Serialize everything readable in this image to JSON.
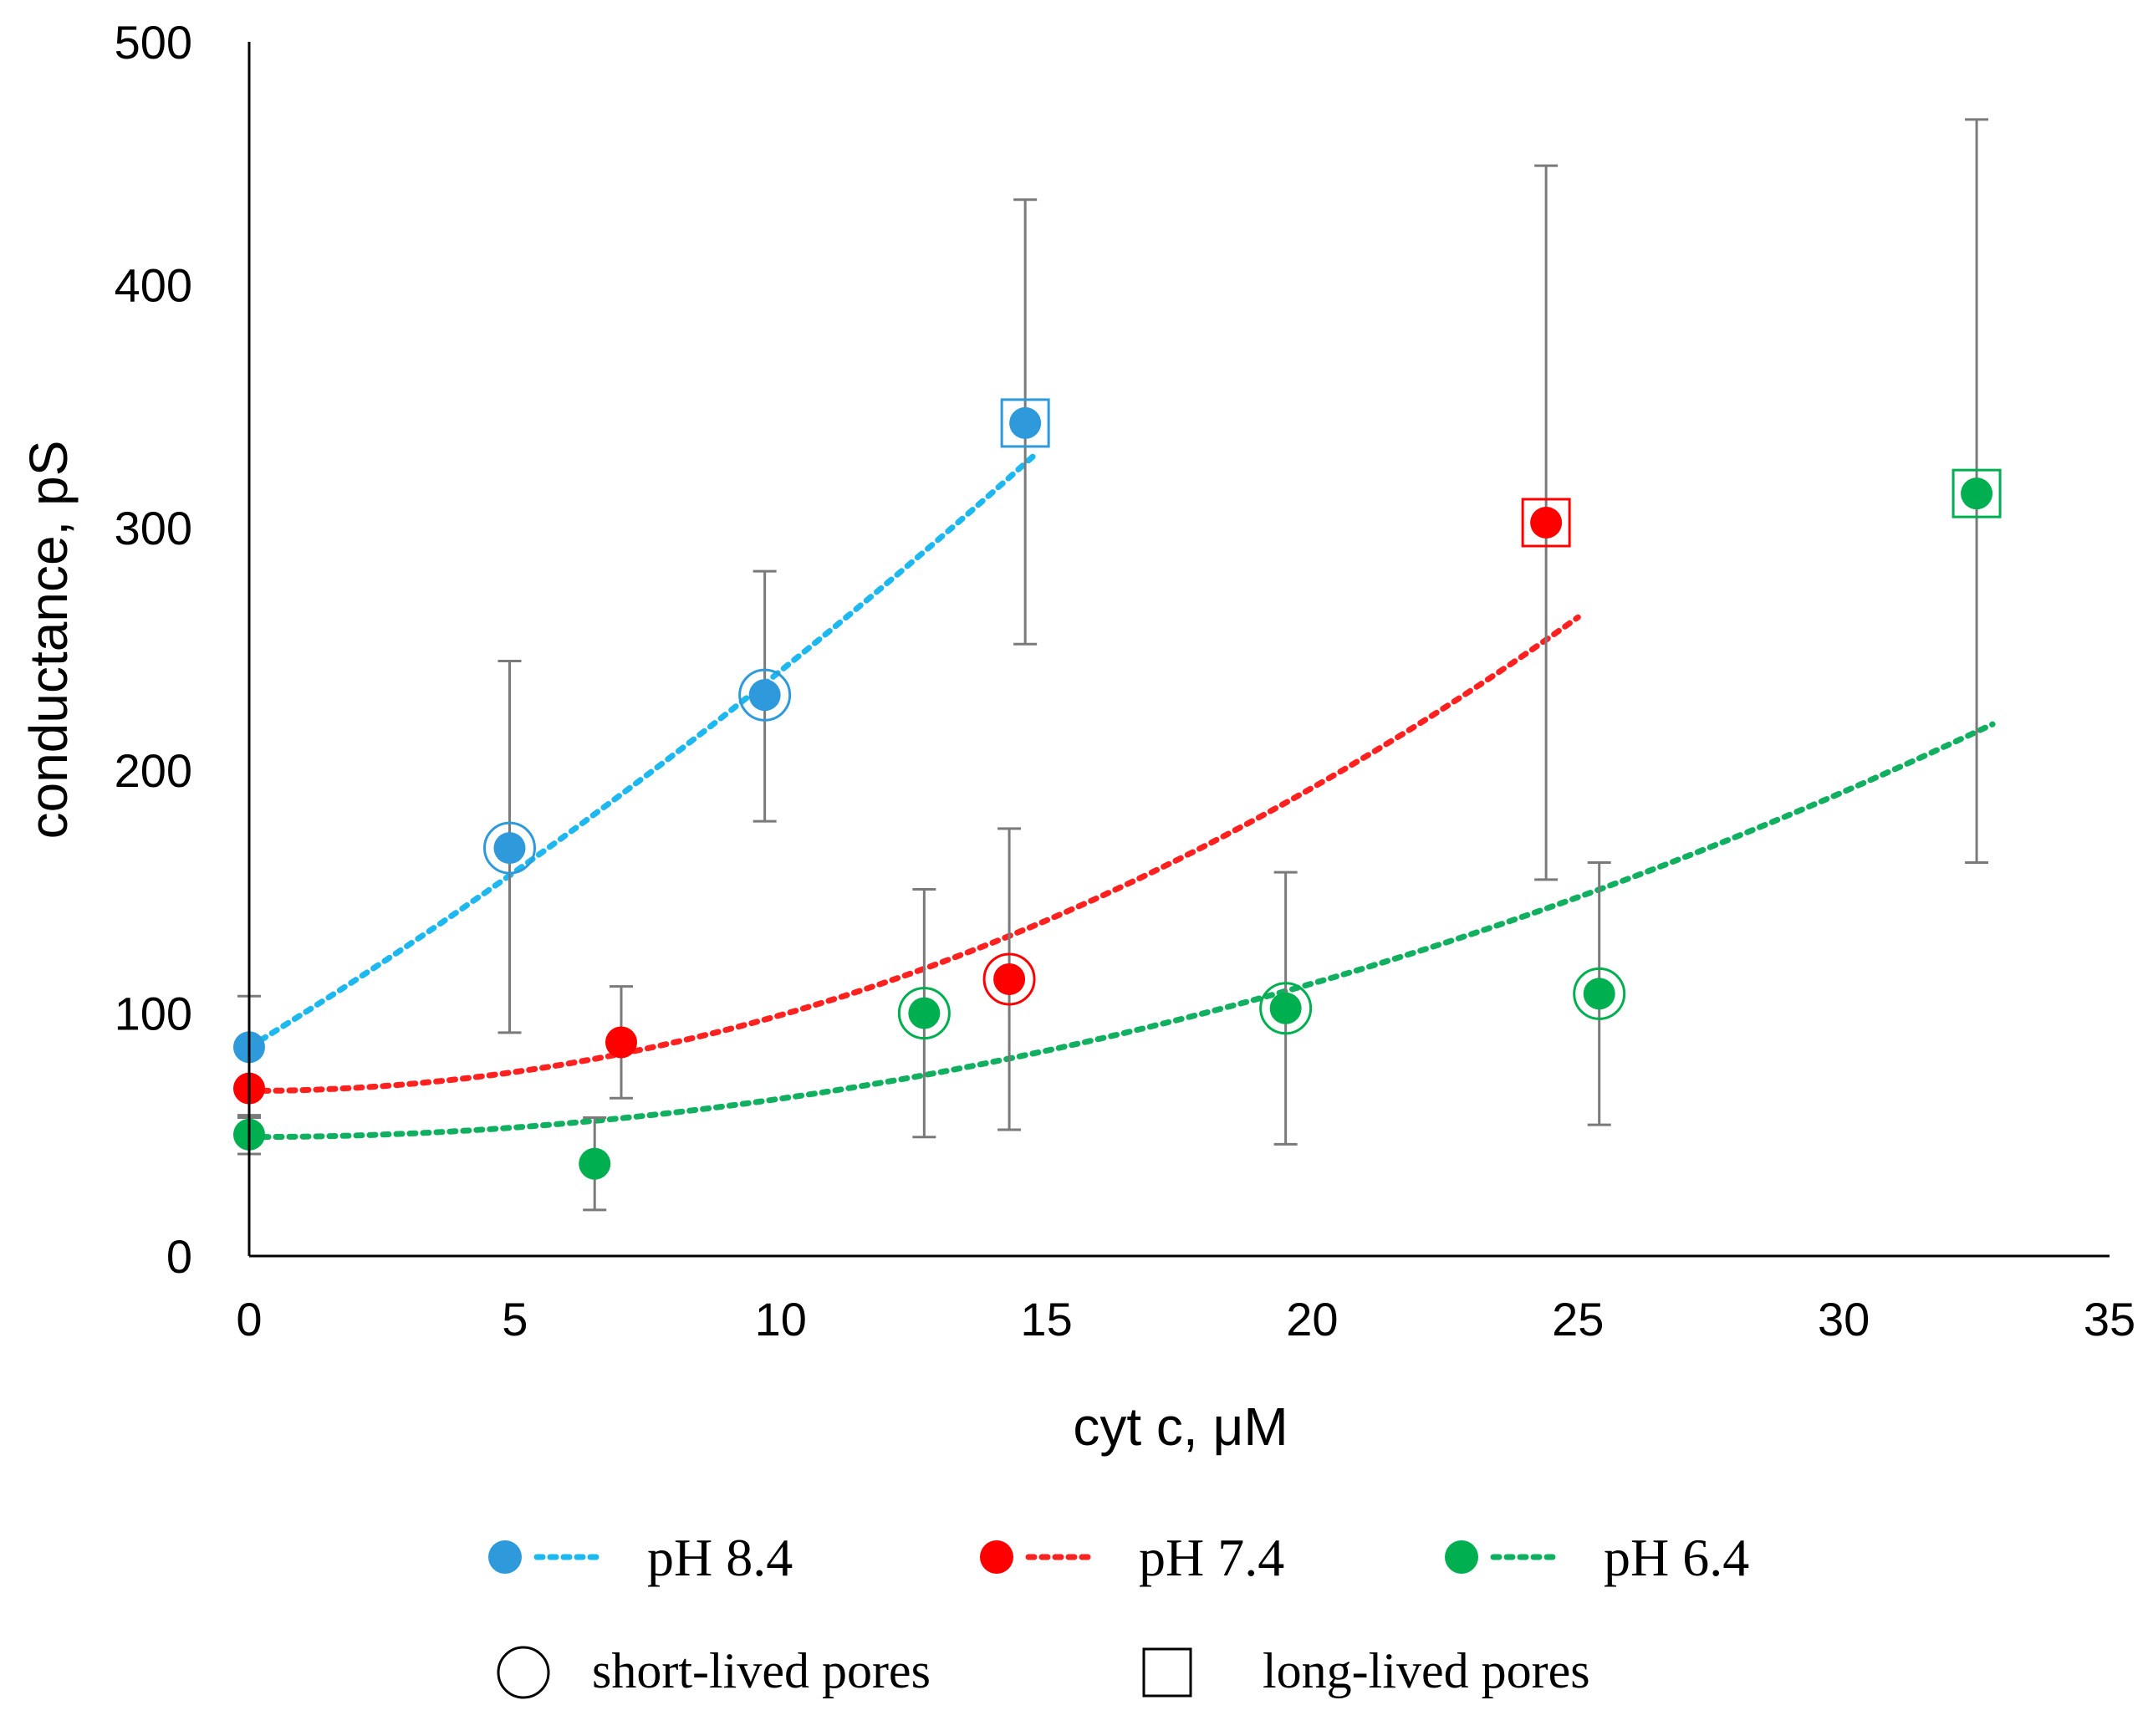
{
  "chart_data": {
    "type": "scatter",
    "title": "",
    "xlabel": "cyt c, μM",
    "ylabel": "conductance, pS",
    "xlim": [
      0,
      35
    ],
    "ylim": [
      0,
      500
    ],
    "xticks": [
      0,
      5,
      10,
      15,
      20,
      25,
      30,
      35
    ],
    "yticks": [
      0,
      100,
      200,
      300,
      400,
      500
    ],
    "xtick_labels": [
      "0",
      "5",
      "10",
      "15",
      "20",
      "25",
      "30",
      "35"
    ],
    "ytick_labels": [
      "0",
      "100",
      "200",
      "300",
      "400",
      "500"
    ],
    "grid": false,
    "legend_position": "bottom",
    "series": [
      {
        "name": "pH 8.4",
        "color": "#2E9ADC",
        "trend_color": "#1EB8F0",
        "points": [
          {
            "x": 0,
            "y": 86,
            "err_low": 29,
            "err_high": 21,
            "marker": "none"
          },
          {
            "x": 4.9,
            "y": 168,
            "err_low": 76,
            "err_high": 77,
            "marker": "circle"
          },
          {
            "x": 9.7,
            "y": 231,
            "err_low": 52,
            "err_high": 51,
            "marker": "circle"
          },
          {
            "x": 14.6,
            "y": 343,
            "err_low": 91,
            "err_high": 92,
            "marker": "square"
          }
        ],
        "trend": {
          "x_start": 0,
          "x_end": 14.8,
          "a": 86,
          "b": 13.4,
          "c": 0.21
        }
      },
      {
        "name": "pH 7.4",
        "color": "#FF0000",
        "trend_color": "#FF2020",
        "points": [
          {
            "x": 0,
            "y": 69,
            "err_low": 15,
            "err_high": 15,
            "marker": "none"
          },
          {
            "x": 7,
            "y": 88,
            "err_low": 23,
            "err_high": 23,
            "marker": "none"
          },
          {
            "x": 14.3,
            "y": 114,
            "err_low": 62,
            "err_high": 62,
            "marker": "circle"
          },
          {
            "x": 24.4,
            "y": 302,
            "err_low": 147,
            "err_high": 147,
            "marker": "square"
          }
        ],
        "trend": {
          "x_start": 0,
          "x_end": 25,
          "a": 68,
          "b": 0,
          "c": 0.312
        }
      },
      {
        "name": "pH 6.4",
        "color": "#00B050",
        "trend_color": "#10B060",
        "points": [
          {
            "x": 0,
            "y": 50,
            "err_low": 8,
            "err_high": 8,
            "marker": "none"
          },
          {
            "x": 6.5,
            "y": 38,
            "err_low": 19,
            "err_high": 19,
            "marker": "none"
          },
          {
            "x": 12.7,
            "y": 100,
            "err_low": 51,
            "err_high": 51,
            "marker": "circle"
          },
          {
            "x": 19.5,
            "y": 102,
            "err_low": 56,
            "err_high": 56,
            "marker": "circle"
          },
          {
            "x": 25.4,
            "y": 108,
            "err_low": 54,
            "err_high": 54,
            "marker": "circle"
          },
          {
            "x": 32.5,
            "y": 314,
            "err_low": 152,
            "err_high": 154,
            "marker": "square"
          }
        ],
        "trend": {
          "x_start": 0,
          "x_end": 32.8,
          "a": 49,
          "b": 0,
          "c": 0.158
        }
      }
    ],
    "marker_legend": [
      {
        "shape": "circle",
        "label": "short-lived pores"
      },
      {
        "shape": "square",
        "label": "long-lived pores"
      }
    ]
  }
}
